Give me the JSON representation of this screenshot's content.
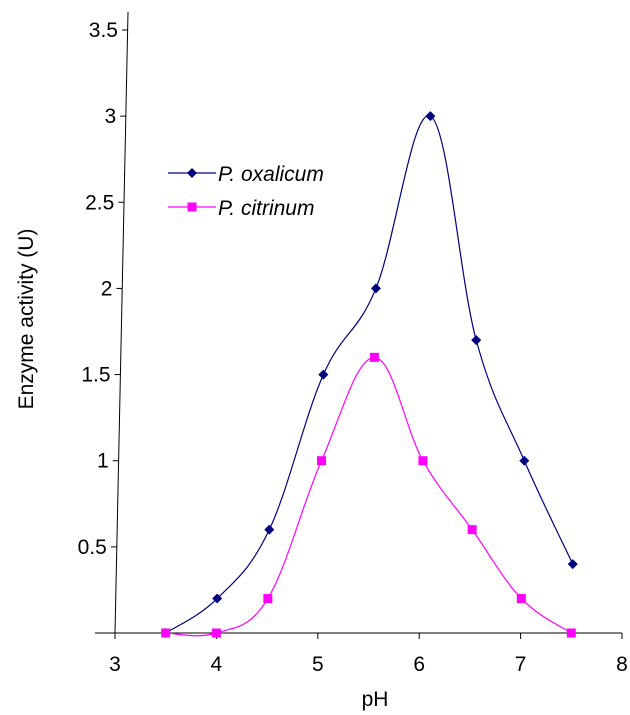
{
  "chart_data": {
    "type": "line",
    "title": "",
    "xlabel": "pH",
    "ylabel": "Enzyme activity (U)",
    "xlim": [
      3,
      8
    ],
    "ylim": [
      0,
      3.5
    ],
    "x_ticks": [
      3,
      4,
      5,
      6,
      7,
      8
    ],
    "y_ticks": [
      0.5,
      1,
      1.5,
      2,
      2.5,
      3,
      3.5
    ],
    "x_tick_labels": [
      "3",
      "4",
      "5",
      "6",
      "7",
      "8"
    ],
    "y_tick_labels": [
      "0.5",
      "1",
      "1.5",
      "2",
      "2.5",
      "3",
      "3.5"
    ],
    "grid": false,
    "legend_position": "upper-left",
    "series": [
      {
        "name": "P. oxalicum",
        "color": "#000080",
        "marker": "diamond",
        "x": [
          3.5,
          4,
          4.5,
          5,
          5.5,
          6,
          6.5,
          7,
          7.5
        ],
        "values": [
          0,
          0.2,
          0.6,
          1.5,
          2.0,
          3.0,
          1.7,
          1.0,
          0.4
        ]
      },
      {
        "name": "P. citrinum",
        "color": "#FF00FF",
        "marker": "square",
        "x": [
          3.5,
          4,
          4.5,
          5,
          5.5,
          6,
          6.5,
          7,
          7.5
        ],
        "values": [
          0,
          0,
          0.2,
          1.0,
          1.6,
          1.0,
          0.6,
          0.2,
          0
        ]
      }
    ]
  }
}
